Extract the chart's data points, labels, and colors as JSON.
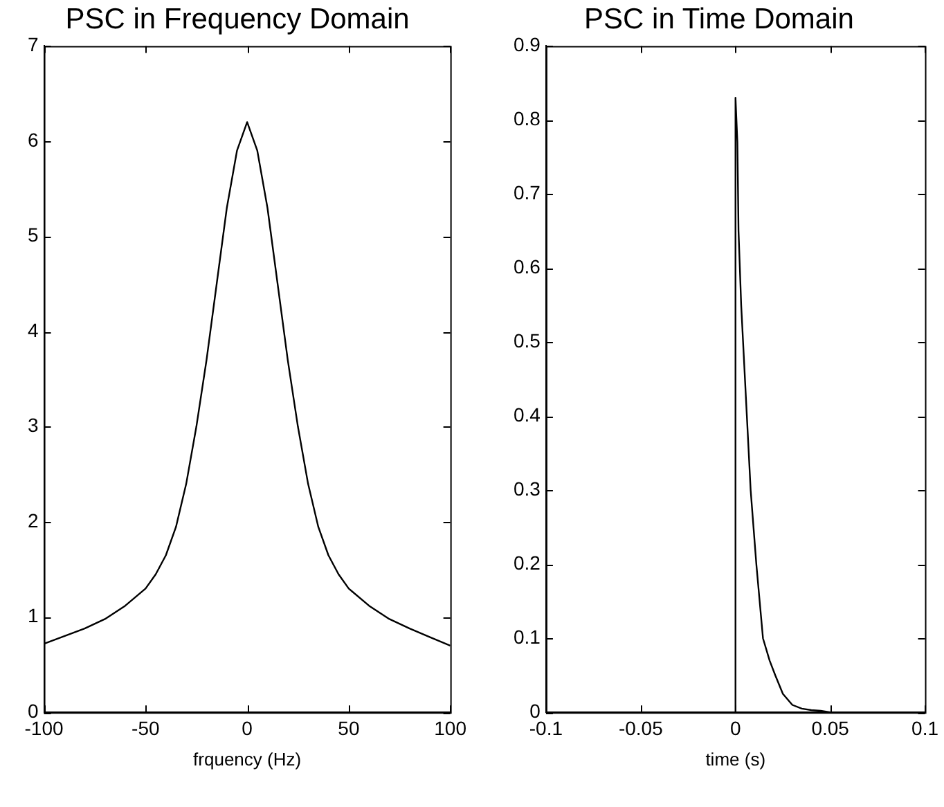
{
  "chart_data": [
    {
      "type": "line",
      "title": "PSC in Frequency Domain",
      "xlabel": "frquency (Hz)",
      "x": [
        -100,
        -90,
        -80,
        -70,
        -60,
        -50,
        -45,
        -40,
        -35,
        -30,
        -25,
        -20,
        -15,
        -10,
        -5,
        0,
        5,
        10,
        15,
        20,
        25,
        30,
        35,
        40,
        45,
        50,
        60,
        70,
        80,
        90,
        100
      ],
      "series": [
        {
          "color": "#000000",
          "values": [
            0.72,
            0.8,
            0.88,
            0.98,
            1.12,
            1.3,
            1.45,
            1.65,
            1.95,
            2.4,
            3.0,
            3.7,
            4.5,
            5.3,
            5.9,
            6.2,
            5.9,
            5.3,
            4.5,
            3.7,
            3.0,
            2.4,
            1.95,
            1.65,
            1.45,
            1.3,
            1.12,
            0.98,
            0.88,
            0.79,
            0.7
          ]
        }
      ],
      "xlim": [
        -100,
        100
      ],
      "xticks": [
        -100,
        -50,
        0,
        50,
        100
      ],
      "ylim": [
        0,
        7
      ],
      "yticks": [
        0,
        1,
        2,
        3,
        4,
        5,
        6,
        7
      ],
      "grid": false,
      "legend": false,
      "marker": "none"
    },
    {
      "type": "line",
      "title": "PSC in Time Domain",
      "xlabel": "time (s)",
      "x": [
        0,
        0,
        0.001,
        0.0016,
        0.003,
        0.004,
        0.006,
        0.008,
        0.011,
        0.0145,
        0.018,
        0.021,
        0.025,
        0.03,
        0.035,
        0.04,
        0.045,
        0.05
      ],
      "series": [
        {
          "color": "#000000",
          "values": [
            0,
            0.83,
            0.77,
            0.65,
            0.55,
            0.5,
            0.4,
            0.3,
            0.2,
            0.1,
            0.07,
            0.05,
            0.025,
            0.01,
            0.005,
            0.003,
            0.002,
            0
          ]
        }
      ],
      "xlim": [
        -0.1,
        0.1
      ],
      "xticks": [
        -0.1,
        -0.05,
        0,
        0.05,
        0.1
      ],
      "ylim": [
        0,
        0.9
      ],
      "yticks": [
        0,
        0.1,
        0.2,
        0.3,
        0.4,
        0.5,
        0.6,
        0.7,
        0.8,
        0.9
      ],
      "grid": false,
      "legend": false,
      "marker": "none"
    }
  ]
}
